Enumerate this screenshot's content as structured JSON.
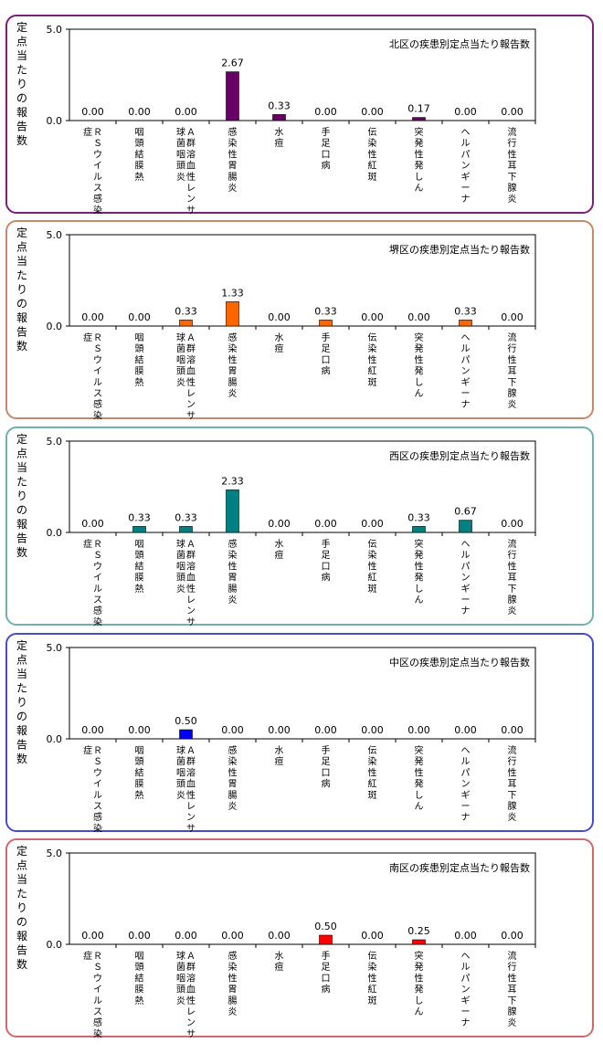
{
  "y_axis_label": "定点当たりの報告数",
  "chart_data": [
    {
      "type": "bar",
      "title": "北区の疾患別定点当たり報告数",
      "ylim": [
        0,
        5.0
      ],
      "yticks": [
        "0.0",
        "5.0"
      ],
      "ylabel": "定点当たりの報告数",
      "color": "#660066",
      "border_color": "#7a1f7a",
      "categories": [
        [
          "ＲＳウイルス感染",
          "症"
        ],
        [
          "咽頭結膜熱"
        ],
        [
          "Ａ群溶血性レンサ",
          "球菌咽頭炎"
        ],
        [
          "感染性胃腸炎"
        ],
        [
          "水痘"
        ],
        [
          "手足口病"
        ],
        [
          "伝染性紅斑"
        ],
        [
          "突発性発しん"
        ],
        [
          "ヘルパンギーナ"
        ],
        [
          "流行性耳下腺炎"
        ]
      ],
      "values": [
        0.0,
        0.0,
        0.0,
        2.67,
        0.33,
        0.0,
        0.0,
        0.17,
        0.0,
        0.0
      ],
      "value_labels": [
        "0.00",
        "0.00",
        "0.00",
        "2.67",
        "0.33",
        "0.00",
        "0.00",
        "0.17",
        "0.00",
        "0.00"
      ]
    },
    {
      "type": "bar",
      "title": "堺区の疾患別定点当たり報告数",
      "ylim": [
        0,
        5.0
      ],
      "yticks": [
        "0.0",
        "5.0"
      ],
      "ylabel": "定点当たりの報告数",
      "color": "#ff6600",
      "border_color": "#c8896a",
      "categories": [
        [
          "ＲＳウイルス感染",
          "症"
        ],
        [
          "咽頭結膜熱"
        ],
        [
          "Ａ群溶血性レンサ",
          "球菌咽頭炎"
        ],
        [
          "感染性胃腸炎"
        ],
        [
          "水痘"
        ],
        [
          "手足口病"
        ],
        [
          "伝染性紅斑"
        ],
        [
          "突発性発しん"
        ],
        [
          "ヘルパンギーナ"
        ],
        [
          "流行性耳下腺炎"
        ]
      ],
      "values": [
        0.0,
        0.0,
        0.33,
        1.33,
        0.0,
        0.33,
        0.0,
        0.0,
        0.33,
        0.0
      ],
      "value_labels": [
        "0.00",
        "0.00",
        "0.33",
        "1.33",
        "0.00",
        "0.33",
        "0.00",
        "0.00",
        "0.33",
        "0.00"
      ]
    },
    {
      "type": "bar",
      "title": "西区の疾患別定点当たり報告数",
      "ylim": [
        0,
        5.0
      ],
      "yticks": [
        "0.0",
        "5.0"
      ],
      "ylabel": "定点当たりの報告数",
      "color": "#008080",
      "border_color": "#6fb0b0",
      "categories": [
        [
          "ＲＳウイルス感染",
          "症"
        ],
        [
          "咽頭結膜熱"
        ],
        [
          "Ａ群溶血性レンサ",
          "球菌咽頭炎"
        ],
        [
          "感染性胃腸炎"
        ],
        [
          "水痘"
        ],
        [
          "手足口病"
        ],
        [
          "伝染性紅斑"
        ],
        [
          "突発性発しん"
        ],
        [
          "ヘルパンギーナ"
        ],
        [
          "流行性耳下腺炎"
        ]
      ],
      "values": [
        0.0,
        0.33,
        0.33,
        2.33,
        0.0,
        0.0,
        0.0,
        0.33,
        0.67,
        0.0
      ],
      "value_labels": [
        "0.00",
        "0.33",
        "0.33",
        "2.33",
        "0.00",
        "0.00",
        "0.00",
        "0.33",
        "0.67",
        "0.00"
      ]
    },
    {
      "type": "bar",
      "title": "中区の疾患別定点当たり報告数",
      "ylim": [
        0,
        5.0
      ],
      "yticks": [
        "0.0",
        "5.0"
      ],
      "ylabel": "定点当たりの報告数",
      "color": "#0000ff",
      "border_color": "#4a4ad0",
      "categories": [
        [
          "ＲＳウイルス感染",
          "症"
        ],
        [
          "咽頭結膜熱"
        ],
        [
          "Ａ群溶血性レンサ",
          "球菌咽頭炎"
        ],
        [
          "感染性胃腸炎"
        ],
        [
          "水痘"
        ],
        [
          "手足口病"
        ],
        [
          "伝染性紅斑"
        ],
        [
          "突発性発しん"
        ],
        [
          "ヘルパンギーナ"
        ],
        [
          "流行性耳下腺炎"
        ]
      ],
      "values": [
        0.0,
        0.0,
        0.5,
        0.0,
        0.0,
        0.0,
        0.0,
        0.0,
        0.0,
        0.0
      ],
      "value_labels": [
        "0.00",
        "0.00",
        "0.50",
        "0.00",
        "0.00",
        "0.00",
        "0.00",
        "0.00",
        "0.00",
        "0.00"
      ]
    },
    {
      "type": "bar",
      "title": "南区の疾患別定点当たり報告数",
      "ylim": [
        0,
        5.0
      ],
      "yticks": [
        "0.0",
        "5.0"
      ],
      "ylabel": "定点当たりの報告数",
      "color": "#ff0000",
      "border_color": "#d06a6a",
      "categories": [
        [
          "ＲＳウイルス感染",
          "症"
        ],
        [
          "咽頭結膜熱"
        ],
        [
          "Ａ群溶血性レンサ",
          "球菌咽頭炎"
        ],
        [
          "感染性胃腸炎"
        ],
        [
          "水痘"
        ],
        [
          "手足口病"
        ],
        [
          "伝染性紅斑"
        ],
        [
          "突発性発しん"
        ],
        [
          "ヘルパンギーナ"
        ],
        [
          "流行性耳下腺炎"
        ]
      ],
      "values": [
        0.0,
        0.0,
        0.0,
        0.0,
        0.0,
        0.5,
        0.0,
        0.25,
        0.0,
        0.0
      ],
      "value_labels": [
        "0.00",
        "0.00",
        "0.00",
        "0.00",
        "0.00",
        "0.50",
        "0.00",
        "0.25",
        "0.00",
        "0.00"
      ]
    }
  ]
}
